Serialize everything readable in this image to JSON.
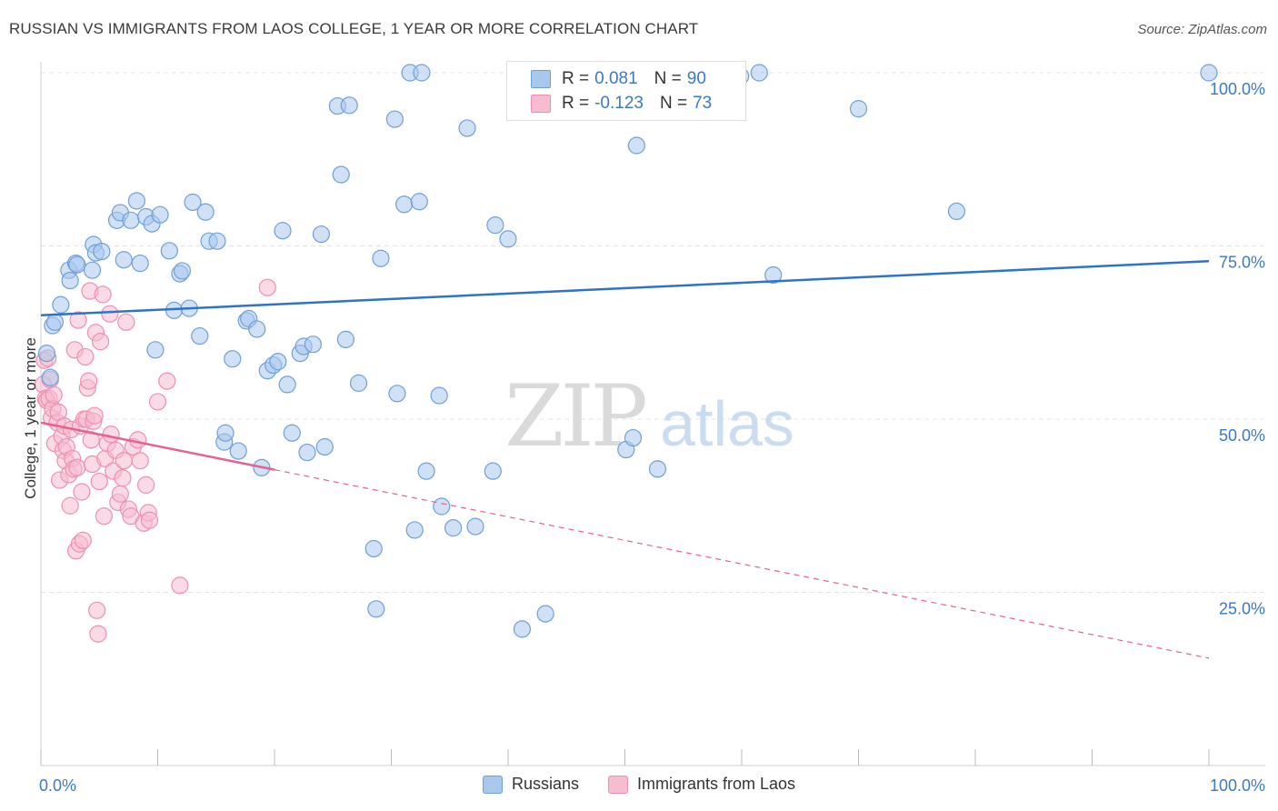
{
  "header": {
    "title": "RUSSIAN VS IMMIGRANTS FROM LAOS COLLEGE, 1 YEAR OR MORE CORRELATION CHART",
    "source": "Source: ZipAtlas.com"
  },
  "watermark": {
    "zip": "ZIP",
    "atlas": "atlas"
  },
  "legend": {
    "rows": [
      {
        "r_label": "R =",
        "r_value": "0.081",
        "n_label": "N =",
        "n_value": "90"
      },
      {
        "r_label": "R =",
        "r_value": "-0.123",
        "n_label": "N =",
        "n_value": "73"
      }
    ],
    "bottom": [
      "Russians",
      "Immigrants from Laos"
    ]
  },
  "colors": {
    "blue_fill": "#a9c8ee",
    "blue_stroke": "#6f9fd8",
    "blue_line": "#2e72c9",
    "pink_fill": "#f6bcd0",
    "pink_stroke": "#ee8fb0",
    "pink_line": "#e3628f",
    "tick_text": "#3a78c8",
    "grid": "#e3e3e3"
  },
  "chart_data": {
    "type": "scatter",
    "title": "RUSSIAN VS IMMIGRANTS FROM LAOS COLLEGE, 1 YEAR OR MORE CORRELATION CHART",
    "xlabel": "",
    "ylabel": "College, 1 year or more",
    "xlim": [
      0,
      100
    ],
    "ylim": [
      0,
      100
    ],
    "x_tick_labels": [
      "0.0%",
      "100.0%"
    ],
    "y_tick_labels": [
      "100.0%",
      "75.0%",
      "50.0%",
      "25.0%"
    ],
    "y_ticks": [
      100,
      75,
      50,
      25
    ],
    "grid": true,
    "legend_position": "top-center",
    "series": [
      {
        "name": "Russians",
        "r": 0.081,
        "n": 90,
        "trend": {
          "x": [
            0,
            100
          ],
          "y": [
            65.0,
            72.8
          ],
          "style": "solid"
        },
        "points": [
          [
            0.5,
            59.5
          ],
          [
            0.8,
            56.0
          ],
          [
            1.0,
            63.5
          ],
          [
            1.2,
            64.0
          ],
          [
            1.7,
            66.5
          ],
          [
            2.4,
            71.5
          ],
          [
            2.5,
            70.0
          ],
          [
            3.0,
            72.5
          ],
          [
            3.1,
            72.3
          ],
          [
            4.4,
            71.5
          ],
          [
            4.5,
            75.2
          ],
          [
            4.7,
            74.0
          ],
          [
            5.2,
            74.2
          ],
          [
            6.5,
            78.7
          ],
          [
            6.8,
            79.8
          ],
          [
            7.1,
            73.0
          ],
          [
            7.7,
            78.7
          ],
          [
            8.2,
            81.5
          ],
          [
            8.5,
            72.5
          ],
          [
            9.0,
            79.2
          ],
          [
            9.5,
            78.2
          ],
          [
            9.8,
            60.0
          ],
          [
            10.2,
            79.5
          ],
          [
            11.0,
            74.3
          ],
          [
            11.4,
            65.7
          ],
          [
            11.9,
            71.0
          ],
          [
            12.1,
            71.4
          ],
          [
            12.7,
            66.0
          ],
          [
            13.0,
            81.3
          ],
          [
            13.6,
            62.0
          ],
          [
            14.1,
            79.9
          ],
          [
            14.4,
            75.7
          ],
          [
            15.1,
            75.7
          ],
          [
            15.7,
            46.7
          ],
          [
            15.8,
            48.0
          ],
          [
            16.4,
            58.7
          ],
          [
            16.9,
            45.4
          ],
          [
            17.6,
            64.2
          ],
          [
            17.8,
            64.5
          ],
          [
            18.5,
            63.0
          ],
          [
            18.9,
            43.0
          ],
          [
            19.4,
            57.0
          ],
          [
            19.9,
            57.8
          ],
          [
            20.3,
            58.3
          ],
          [
            20.7,
            77.2
          ],
          [
            21.1,
            55.0
          ],
          [
            21.5,
            48.0
          ],
          [
            22.2,
            59.5
          ],
          [
            22.5,
            60.5
          ],
          [
            22.8,
            45.2
          ],
          [
            23.3,
            60.8
          ],
          [
            24.0,
            76.7
          ],
          [
            24.3,
            46.0
          ],
          [
            25.7,
            85.3
          ],
          [
            25.4,
            95.2
          ],
          [
            26.1,
            61.5
          ],
          [
            26.4,
            95.3
          ],
          [
            27.2,
            55.2
          ],
          [
            28.5,
            31.3
          ],
          [
            28.7,
            22.6
          ],
          [
            29.1,
            73.2
          ],
          [
            30.3,
            93.3
          ],
          [
            30.5,
            53.7
          ],
          [
            31.1,
            81.0
          ],
          [
            31.6,
            100.0
          ],
          [
            32.0,
            34.0
          ],
          [
            32.4,
            81.4
          ],
          [
            32.6,
            100.0
          ],
          [
            33.0,
            42.5
          ],
          [
            34.1,
            53.4
          ],
          [
            34.3,
            37.4
          ],
          [
            35.3,
            34.3
          ],
          [
            36.5,
            92.0
          ],
          [
            37.2,
            34.5
          ],
          [
            38.7,
            42.5
          ],
          [
            38.9,
            78.0
          ],
          [
            40.0,
            76.0
          ],
          [
            41.2,
            19.7
          ],
          [
            43.2,
            21.9
          ],
          [
            46.6,
            99.5
          ],
          [
            50.1,
            45.6
          ],
          [
            50.7,
            47.3
          ],
          [
            51.0,
            89.5
          ],
          [
            52.8,
            42.8
          ],
          [
            59.9,
            99.5
          ],
          [
            61.5,
            100.0
          ],
          [
            62.7,
            70.8
          ],
          [
            70.0,
            94.8
          ],
          [
            78.4,
            80.0
          ],
          [
            100.0,
            100.0
          ]
        ]
      },
      {
        "name": "Immigrants from Laos",
        "r": -0.123,
        "n": 73,
        "trend": {
          "x": [
            0,
            100
          ],
          "y": [
            49.5,
            15.5
          ],
          "solid_until_x": 20
        },
        "points": [
          [
            0.2,
            55.0
          ],
          [
            0.3,
            58.5
          ],
          [
            0.4,
            53.0
          ],
          [
            0.5,
            52.7
          ],
          [
            0.6,
            58.8
          ],
          [
            0.7,
            53.0
          ],
          [
            0.8,
            55.7
          ],
          [
            0.9,
            50.2
          ],
          [
            1.0,
            51.5
          ],
          [
            1.1,
            53.5
          ],
          [
            1.2,
            46.5
          ],
          [
            1.4,
            49.5
          ],
          [
            1.5,
            51.0
          ],
          [
            1.6,
            41.2
          ],
          [
            1.8,
            47.5
          ],
          [
            1.9,
            45.5
          ],
          [
            2.0,
            49.0
          ],
          [
            2.1,
            44.0
          ],
          [
            2.2,
            46.0
          ],
          [
            2.4,
            42.0
          ],
          [
            2.5,
            37.5
          ],
          [
            2.6,
            48.5
          ],
          [
            2.7,
            44.3
          ],
          [
            2.8,
            42.8
          ],
          [
            2.9,
            60.0
          ],
          [
            3.0,
            31.0
          ],
          [
            3.1,
            43.0
          ],
          [
            3.2,
            64.3
          ],
          [
            3.3,
            32.0
          ],
          [
            3.4,
            49.0
          ],
          [
            3.5,
            39.5
          ],
          [
            3.6,
            32.5
          ],
          [
            3.7,
            50.0
          ],
          [
            3.8,
            59.0
          ],
          [
            3.9,
            50.0
          ],
          [
            4.0,
            54.5
          ],
          [
            4.1,
            55.5
          ],
          [
            4.2,
            68.5
          ],
          [
            4.3,
            47.0
          ],
          [
            4.4,
            43.5
          ],
          [
            4.5,
            49.7
          ],
          [
            4.6,
            50.5
          ],
          [
            4.7,
            62.5
          ],
          [
            4.8,
            22.4
          ],
          [
            4.9,
            19.0
          ],
          [
            5.0,
            41.0
          ],
          [
            5.1,
            61.2
          ],
          [
            5.3,
            68.0
          ],
          [
            5.4,
            36.0
          ],
          [
            5.5,
            44.3
          ],
          [
            5.7,
            46.5
          ],
          [
            5.9,
            65.2
          ],
          [
            6.0,
            47.8
          ],
          [
            6.2,
            42.5
          ],
          [
            6.4,
            45.5
          ],
          [
            6.6,
            38.0
          ],
          [
            6.8,
            39.2
          ],
          [
            7.0,
            41.5
          ],
          [
            7.1,
            44.0
          ],
          [
            7.3,
            64.0
          ],
          [
            7.5,
            37.0
          ],
          [
            7.7,
            36.0
          ],
          [
            7.9,
            46.0
          ],
          [
            8.3,
            47.0
          ],
          [
            8.5,
            44.0
          ],
          [
            8.8,
            35.0
          ],
          [
            9.0,
            40.5
          ],
          [
            9.2,
            36.5
          ],
          [
            9.3,
            35.4
          ],
          [
            10.0,
            52.5
          ],
          [
            10.8,
            55.5
          ],
          [
            11.9,
            26.0
          ],
          [
            19.4,
            69.0
          ]
        ]
      }
    ]
  }
}
